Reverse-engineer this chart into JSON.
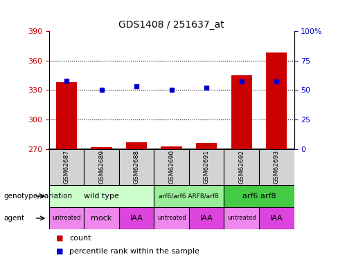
{
  "title": "GDS1408 / 251637_at",
  "samples": [
    "GSM62687",
    "GSM62689",
    "GSM62688",
    "GSM62690",
    "GSM62691",
    "GSM62692",
    "GSM62693"
  ],
  "count_values": [
    338.0,
    271.5,
    276.5,
    272.5,
    276.0,
    345.0,
    368.0
  ],
  "percentile_values": [
    58,
    50,
    53,
    50,
    52,
    57,
    57
  ],
  "ylim_left": [
    270,
    390
  ],
  "ylim_right": [
    0,
    100
  ],
  "yticks_left": [
    270,
    300,
    330,
    360,
    390
  ],
  "yticks_right": [
    0,
    25,
    50,
    75,
    100
  ],
  "ytick_labels_right": [
    "0",
    "25",
    "50",
    "75",
    "100%"
  ],
  "bar_color": "#cc0000",
  "dot_color": "#0000cc",
  "genotype_groups": [
    {
      "label": "wild type",
      "cols": [
        0,
        1,
        2
      ],
      "color": "#ccffcc"
    },
    {
      "label": "arf6/arf6 ARF8/arf8",
      "cols": [
        3,
        4
      ],
      "color": "#99ee99"
    },
    {
      "label": "arf6 arf8",
      "cols": [
        5,
        6
      ],
      "color": "#44cc44"
    }
  ],
  "agent_labels": [
    "untreated",
    "mock",
    "IAA",
    "untreated",
    "IAA",
    "untreated",
    "IAA"
  ],
  "agent_light_color": "#ee88ee",
  "agent_dark_color": "#dd44dd",
  "agent_dark_indices": [
    2,
    4,
    6
  ],
  "agent_row_label": "agent",
  "genotype_row_label": "genotype/variation",
  "legend_count_label": "count",
  "legend_percentile_label": "percentile rank within the sample",
  "bar_color_legend": "#cc0000",
  "dot_color_legend": "#0000cc",
  "hgrid_values": [
    300,
    330,
    360
  ],
  "sample_box_color": "#d3d3d3"
}
